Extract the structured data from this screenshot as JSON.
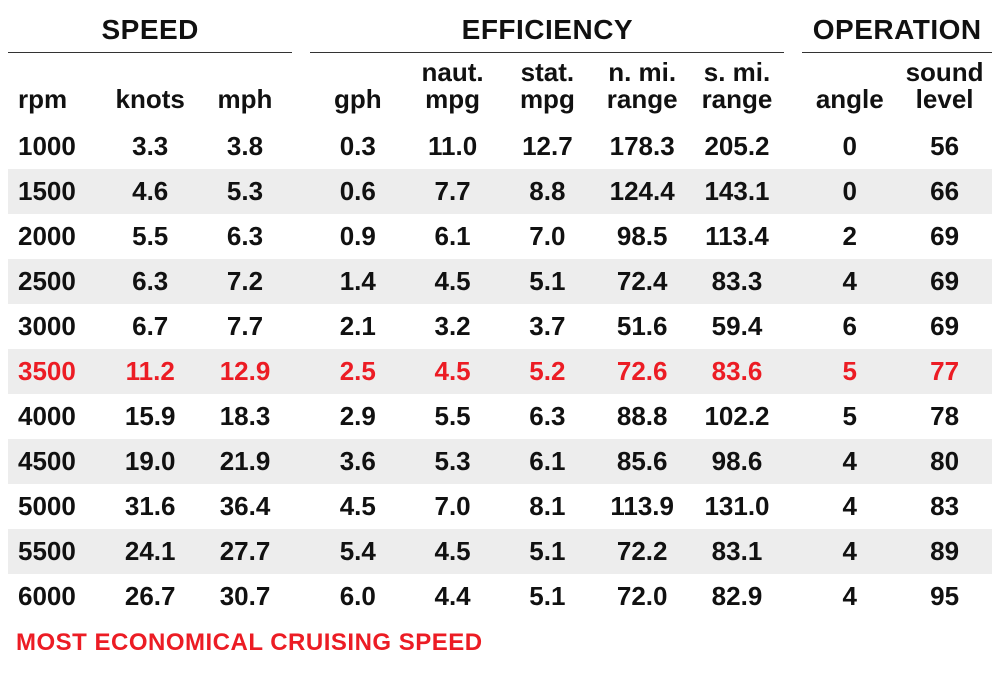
{
  "type": "table",
  "background_color": "#ffffff",
  "stripe_color": "#ededed",
  "text_color": "#111111",
  "highlight_color": "#ec1c24",
  "group_border_color": "#333333",
  "font_family": "Arial Narrow",
  "header_fontsize": 28,
  "subheader_fontsize": 26,
  "cell_fontsize": 26,
  "footer_fontsize": 24,
  "groups": [
    {
      "label": "SPEED",
      "span": 3
    },
    {
      "label": "EFFICIENCY",
      "span": 5
    },
    {
      "label": "OPERATION",
      "span": 2
    }
  ],
  "columns": [
    {
      "key": "rpm",
      "label": "rpm",
      "align": "left"
    },
    {
      "key": "knots",
      "label": "knots"
    },
    {
      "key": "mph",
      "label": "mph"
    },
    {
      "key": "gph",
      "label": "gph"
    },
    {
      "key": "nmpg",
      "label": "naut.\nmpg"
    },
    {
      "key": "smpg",
      "label": "stat.\nmpg"
    },
    {
      "key": "nrange",
      "label": "n. mi.\nrange"
    },
    {
      "key": "srange",
      "label": "s. mi.\nrange"
    },
    {
      "key": "angle",
      "label": "angle"
    },
    {
      "key": "sound",
      "label": "sound\nlevel"
    }
  ],
  "highlight_row_index": 5,
  "rows": [
    [
      "1000",
      "3.3",
      "3.8",
      "0.3",
      "11.0",
      "12.7",
      "178.3",
      "205.2",
      "0",
      "56"
    ],
    [
      "1500",
      "4.6",
      "5.3",
      "0.6",
      "7.7",
      "8.8",
      "124.4",
      "143.1",
      "0",
      "66"
    ],
    [
      "2000",
      "5.5",
      "6.3",
      "0.9",
      "6.1",
      "7.0",
      "98.5",
      "113.4",
      "2",
      "69"
    ],
    [
      "2500",
      "6.3",
      "7.2",
      "1.4",
      "4.5",
      "5.1",
      "72.4",
      "83.3",
      "4",
      "69"
    ],
    [
      "3000",
      "6.7",
      "7.7",
      "2.1",
      "3.2",
      "3.7",
      "51.6",
      "59.4",
      "6",
      "69"
    ],
    [
      "3500",
      "11.2",
      "12.9",
      "2.5",
      "4.5",
      "5.2",
      "72.6",
      "83.6",
      "5",
      "77"
    ],
    [
      "4000",
      "15.9",
      "18.3",
      "2.9",
      "5.5",
      "6.3",
      "88.8",
      "102.2",
      "5",
      "78"
    ],
    [
      "4500",
      "19.0",
      "21.9",
      "3.6",
      "5.3",
      "6.1",
      "85.6",
      "98.6",
      "4",
      "80"
    ],
    [
      "5000",
      "31.6",
      "36.4",
      "4.5",
      "7.0",
      "8.1",
      "113.9",
      "131.0",
      "4",
      "83"
    ],
    [
      "5500",
      "24.1",
      "27.7",
      "5.4",
      "4.5",
      "5.1",
      "72.2",
      "83.1",
      "4",
      "89"
    ],
    [
      "6000",
      "26.7",
      "30.7",
      "6.0",
      "4.4",
      "5.1",
      "72.0",
      "82.9",
      "4",
      "95"
    ]
  ],
  "footer": "MOST ECONOMICAL CRUISING SPEED"
}
